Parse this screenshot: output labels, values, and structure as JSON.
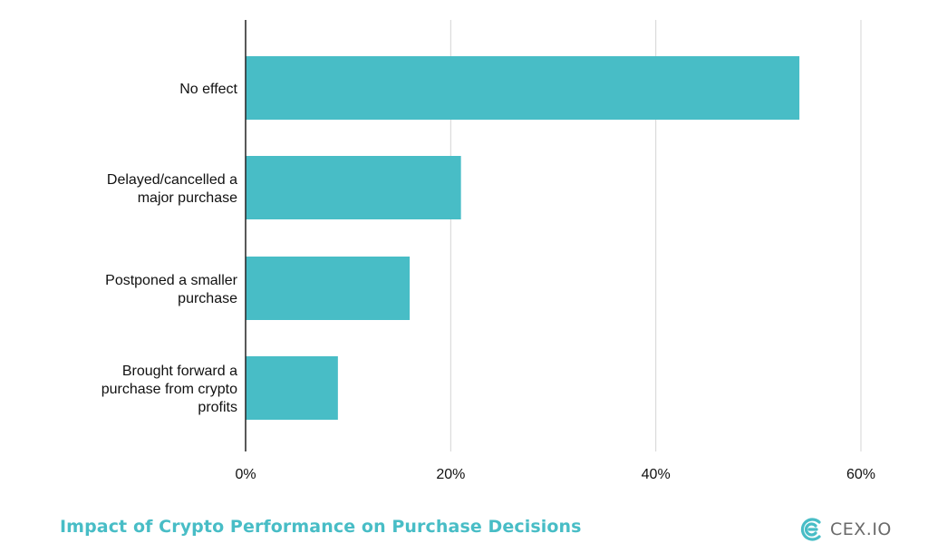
{
  "chart_data": {
    "type": "bar",
    "orientation": "horizontal",
    "categories": [
      [
        "No effect"
      ],
      [
        "Delayed/cancelled a",
        "major purchase"
      ],
      [
        "Postponed a smaller",
        "purchase"
      ],
      [
        "Brought forward a",
        "purchase from crypto",
        "profits"
      ]
    ],
    "values": [
      54,
      21,
      16,
      9
    ],
    "xlim": [
      0,
      60
    ],
    "xticks": [
      "0%",
      "20%",
      "40%",
      "60%"
    ],
    "xtick_values": [
      0,
      20,
      40,
      60
    ],
    "grid": true,
    "bar_color": "#48BDC6",
    "grid_color": "#d4d4d4",
    "axis_color": "#222222"
  },
  "footer": {
    "title": "Impact of Crypto Performance on Purchase Decisions",
    "title_color": "#48BDC6"
  },
  "logo": {
    "text": "CEX.IO",
    "icon": "cex-logo-icon",
    "color": "#48BDC6"
  }
}
